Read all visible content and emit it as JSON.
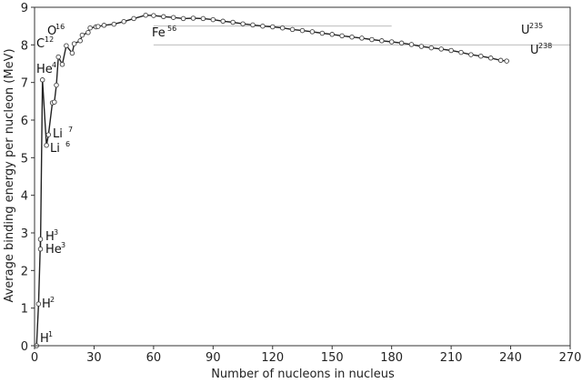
{
  "chart_data": {
    "type": "line",
    "xlabel": "Number of nucleons in nucleus",
    "ylabel": "Average binding energy per nucleon (MeV)",
    "xlim": [
      0,
      270
    ],
    "ylim": [
      0,
      9
    ],
    "xticks": [
      0,
      30,
      60,
      90,
      120,
      150,
      180,
      210,
      240,
      270
    ],
    "yticks": [
      0,
      1,
      2,
      3,
      4,
      5,
      6,
      7,
      8,
      9
    ],
    "grid": false,
    "reference_lines": [
      8.5,
      8
    ],
    "series": [
      {
        "name": "",
        "marker": "open-circle",
        "x": [
          1,
          2,
          3,
          3,
          4,
          6,
          7,
          9,
          10,
          11,
          12,
          14,
          16,
          19,
          20,
          23,
          24,
          27,
          28,
          31,
          32,
          35,
          40,
          45,
          50,
          56,
          60,
          65,
          70,
          75,
          80,
          85,
          90,
          95,
          100,
          105,
          110,
          115,
          120,
          125,
          130,
          135,
          140,
          145,
          150,
          155,
          160,
          165,
          170,
          175,
          180,
          185,
          190,
          195,
          200,
          205,
          210,
          215,
          220,
          225,
          230,
          235,
          238
        ],
        "y": [
          0,
          1.11,
          2.83,
          2.57,
          7.07,
          5.33,
          5.61,
          6.46,
          6.48,
          6.93,
          7.68,
          7.48,
          7.98,
          7.78,
          8.03,
          8.11,
          8.26,
          8.33,
          8.45,
          8.48,
          8.49,
          8.52,
          8.55,
          8.62,
          8.7,
          8.79,
          8.78,
          8.75,
          8.73,
          8.7,
          8.71,
          8.7,
          8.67,
          8.63,
          8.6,
          8.56,
          8.53,
          8.5,
          8.48,
          8.45,
          8.41,
          8.38,
          8.35,
          8.31,
          8.28,
          8.24,
          8.21,
          8.18,
          8.14,
          8.11,
          8.08,
          8.05,
          8.01,
          7.96,
          7.92,
          7.89,
          7.85,
          7.8,
          7.74,
          7.7,
          7.65,
          7.59,
          7.57
        ]
      }
    ],
    "annotations": [
      {
        "symbol": "H",
        "mass": "1"
      },
      {
        "symbol": "H",
        "mass": "2"
      },
      {
        "symbol": "H",
        "mass": "3"
      },
      {
        "symbol": "He",
        "mass": "3"
      },
      {
        "symbol": "He",
        "mass": "4"
      },
      {
        "symbol": "Li",
        "mass": "6"
      },
      {
        "symbol": "Li",
        "mass": "7"
      },
      {
        "symbol": "C",
        "mass": "12"
      },
      {
        "symbol": "O",
        "mass": "16"
      },
      {
        "symbol": "Fe",
        "mass": "56"
      },
      {
        "symbol": "U",
        "mass": "235"
      },
      {
        "symbol": "U",
        "mass": "238"
      }
    ]
  }
}
